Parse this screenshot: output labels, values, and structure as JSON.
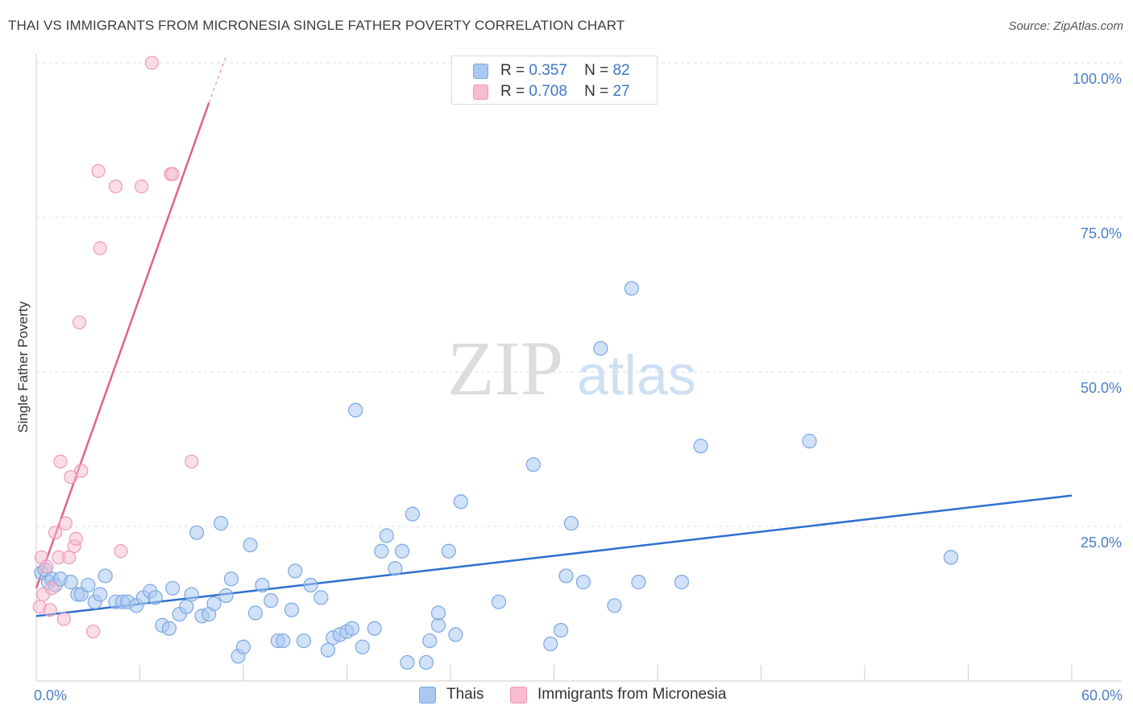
{
  "title": "THAI VS IMMIGRANTS FROM MICRONESIA SINGLE FATHER POVERTY CORRELATION CHART",
  "source": "Source: ZipAtlas.com",
  "watermark": {
    "part1": "ZIP",
    "part2": "atlas"
  },
  "legend": {
    "rows": [
      {
        "r_label": "R =",
        "r_value": "0.357",
        "n_label": "N =",
        "n_value": "82"
      },
      {
        "r_label": "R =",
        "r_value": "0.708",
        "n_label": "N =",
        "n_value": "27"
      }
    ]
  },
  "bottom_legend": {
    "thais": "Thais",
    "micronesia": "Immigrants from Micronesia"
  },
  "colors": {
    "thais_fill": "#a9c9f2",
    "thais_stroke": "#7aa8e0",
    "thais_line": "#2f6fcf",
    "micro_fill": "#f7bcd0",
    "micro_stroke": "#ee9ab6",
    "micro_line": "#e0628e",
    "tick_text": "#4a7fc8",
    "grid": "#dddddd"
  },
  "chart_data": {
    "type": "scatter",
    "title": "THAI VS IMMIGRANTS FROM MICRONESIA SINGLE FATHER POVERTY CORRELATION CHART",
    "xlabel": "",
    "ylabel": "Single Father Poverty",
    "xlim": [
      0,
      60
    ],
    "ylim": [
      0,
      100
    ],
    "x_tick_labels": [
      "0.0%",
      "60.0%"
    ],
    "y_tick_labels": [
      "100.0%",
      "75.0%",
      "50.0%",
      "25.0%"
    ],
    "y_ticks": [
      100,
      75,
      50,
      25
    ],
    "series": [
      {
        "name": "Thais",
        "r": 0.357,
        "n": 82,
        "trend": {
          "x": [
            0,
            60
          ],
          "y": [
            10.5,
            30.0
          ]
        },
        "points": [
          [
            0.3,
            17.5
          ],
          [
            0.5,
            18.0
          ],
          [
            0.7,
            16.0
          ],
          [
            0.9,
            16.5
          ],
          [
            1.1,
            15.5
          ],
          [
            1.4,
            16.5
          ],
          [
            2.0,
            16.0
          ],
          [
            2.4,
            14.0
          ],
          [
            2.6,
            14.0
          ],
          [
            3.0,
            15.5
          ],
          [
            3.4,
            12.8
          ],
          [
            3.7,
            14.0
          ],
          [
            4.0,
            17.0
          ],
          [
            4.6,
            12.8
          ],
          [
            5.0,
            12.8
          ],
          [
            5.3,
            12.8
          ],
          [
            5.8,
            12.2
          ],
          [
            6.2,
            13.5
          ],
          [
            6.6,
            14.5
          ],
          [
            6.9,
            13.5
          ],
          [
            7.3,
            9.0
          ],
          [
            7.7,
            8.5
          ],
          [
            7.9,
            15.0
          ],
          [
            8.3,
            10.8
          ],
          [
            8.7,
            12.0
          ],
          [
            9.0,
            14.0
          ],
          [
            9.3,
            24.0
          ],
          [
            9.6,
            10.5
          ],
          [
            10.0,
            10.8
          ],
          [
            10.3,
            12.5
          ],
          [
            10.7,
            25.5
          ],
          [
            11.0,
            13.8
          ],
          [
            11.3,
            16.5
          ],
          [
            11.7,
            4.0
          ],
          [
            12.0,
            5.5
          ],
          [
            12.4,
            22.0
          ],
          [
            12.7,
            11.0
          ],
          [
            13.1,
            15.5
          ],
          [
            13.6,
            13.0
          ],
          [
            14.0,
            6.5
          ],
          [
            14.3,
            6.5
          ],
          [
            14.8,
            11.5
          ],
          [
            15.0,
            17.8
          ],
          [
            15.5,
            6.5
          ],
          [
            15.9,
            15.5
          ],
          [
            16.5,
            13.5
          ],
          [
            16.9,
            5.0
          ],
          [
            17.2,
            7.0
          ],
          [
            17.6,
            7.5
          ],
          [
            18.0,
            8.0
          ],
          [
            18.3,
            8.5
          ],
          [
            18.5,
            43.8
          ],
          [
            18.9,
            5.5
          ],
          [
            19.6,
            8.5
          ],
          [
            20.0,
            21.0
          ],
          [
            20.3,
            23.5
          ],
          [
            20.8,
            18.2
          ],
          [
            21.2,
            21.0
          ],
          [
            21.5,
            3.0
          ],
          [
            21.8,
            27.0
          ],
          [
            22.6,
            3.0
          ],
          [
            22.8,
            6.5
          ],
          [
            23.3,
            9.0
          ],
          [
            23.3,
            11.0
          ],
          [
            23.9,
            21.0
          ],
          [
            24.3,
            7.5
          ],
          [
            24.6,
            29.0
          ],
          [
            26.8,
            12.8
          ],
          [
            28.8,
            35.0
          ],
          [
            29.8,
            6.0
          ],
          [
            30.4,
            8.2
          ],
          [
            30.7,
            17.0
          ],
          [
            31.0,
            25.5
          ],
          [
            31.7,
            16.0
          ],
          [
            32.7,
            53.8
          ],
          [
            33.5,
            12.2
          ],
          [
            34.5,
            63.5
          ],
          [
            34.9,
            16.0
          ],
          [
            37.4,
            16.0
          ],
          [
            38.5,
            38.0
          ],
          [
            44.8,
            38.8
          ],
          [
            53.0,
            20.0
          ]
        ]
      },
      {
        "name": "Immigrants from Micronesia",
        "r": 0.708,
        "n": 27,
        "trend": {
          "x": [
            0,
            10
          ],
          "y": [
            15.0,
            93.5
          ]
        },
        "trend_dashed": {
          "x": [
            10,
            11
          ],
          "y": [
            93.5,
            101.0
          ]
        },
        "points": [
          [
            0.2,
            12.0
          ],
          [
            0.3,
            20.0
          ],
          [
            0.4,
            14.0
          ],
          [
            0.6,
            18.5
          ],
          [
            0.8,
            11.5
          ],
          [
            0.9,
            15.0
          ],
          [
            1.1,
            24.0
          ],
          [
            1.3,
            20.0
          ],
          [
            1.4,
            35.5
          ],
          [
            1.6,
            10.0
          ],
          [
            1.7,
            25.5
          ],
          [
            1.9,
            20.0
          ],
          [
            2.0,
            33.0
          ],
          [
            2.2,
            21.8
          ],
          [
            2.3,
            23.0
          ],
          [
            2.5,
            58.0
          ],
          [
            2.6,
            34.0
          ],
          [
            3.3,
            8.0
          ],
          [
            3.6,
            82.5
          ],
          [
            3.7,
            70.0
          ],
          [
            4.6,
            80.0
          ],
          [
            4.9,
            21.0
          ],
          [
            6.1,
            80.0
          ],
          [
            6.7,
            100.0
          ],
          [
            7.8,
            82.0
          ],
          [
            7.9,
            82.0
          ],
          [
            9.0,
            35.5
          ]
        ]
      }
    ]
  }
}
